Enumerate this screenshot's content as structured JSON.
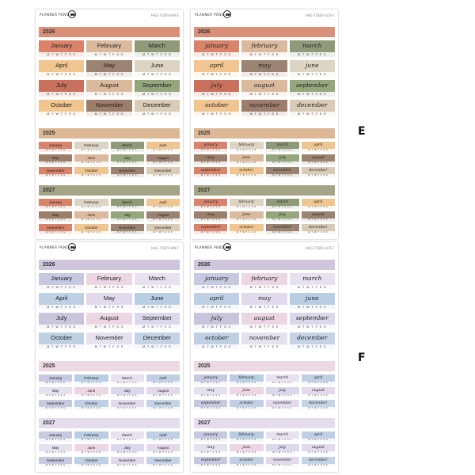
{
  "listing": {
    "variants": [
      {
        "label": "E",
        "sheets": [
          {
            "brand": "PLANNER PENGUIN",
            "code": "HAG-7180V-HW-E",
            "style": "print"
          },
          {
            "brand": "PLANNER PENGUIN",
            "code": "HAG-7180V-SCR-E",
            "style": "script"
          }
        ],
        "colors": {
          "header_main": "#d98f78",
          "header_2025": "#dcb896",
          "header_2027": "#a5a486",
          "cells": [
            "#d9836a",
            "#dbb99c",
            "#8f9a78",
            "#f0c58f",
            "#9c8270",
            "#ddd4c4",
            "#c9715c",
            "#e8ad8a",
            "#95a67d",
            "#f2c79a",
            "#9d7e6a",
            "#d9cbb5"
          ]
        }
      },
      {
        "label": "F",
        "sheets": [
          {
            "brand": "PLANNER PENGUIN",
            "code": "HAG-7180V-HW-F",
            "style": "print"
          },
          {
            "brand": "PLANNER PENGUIN",
            "code": "HAG-7180V-SCR-F",
            "style": "script"
          }
        ],
        "colors": {
          "header_main": "#cfc6dd",
          "header_2025": "#ecd9e3",
          "header_2027": "#e5ddee",
          "cells": [
            "#c7c9e1",
            "#ecd6e4",
            "#e7e1f0",
            "#c0d0e4",
            "#e2daec",
            "#b9cde3",
            "#cbc4dd",
            "#f0d9e6",
            "#dcd7ec",
            "#b8c8dc",
            "#e6e1ef",
            "#c4d3e6"
          ]
        }
      }
    ],
    "years": {
      "main": "2026",
      "second": "2025",
      "third": "2027"
    },
    "months_print": [
      "January",
      "February",
      "March",
      "April",
      "May",
      "June",
      "July",
      "August",
      "September",
      "October",
      "November",
      "December"
    ],
    "months_script": [
      "january",
      "february",
      "march",
      "april",
      "may",
      "june",
      "july",
      "august",
      "september",
      "october",
      "november",
      "december"
    ],
    "weekdays": "M T W T F S S"
  }
}
